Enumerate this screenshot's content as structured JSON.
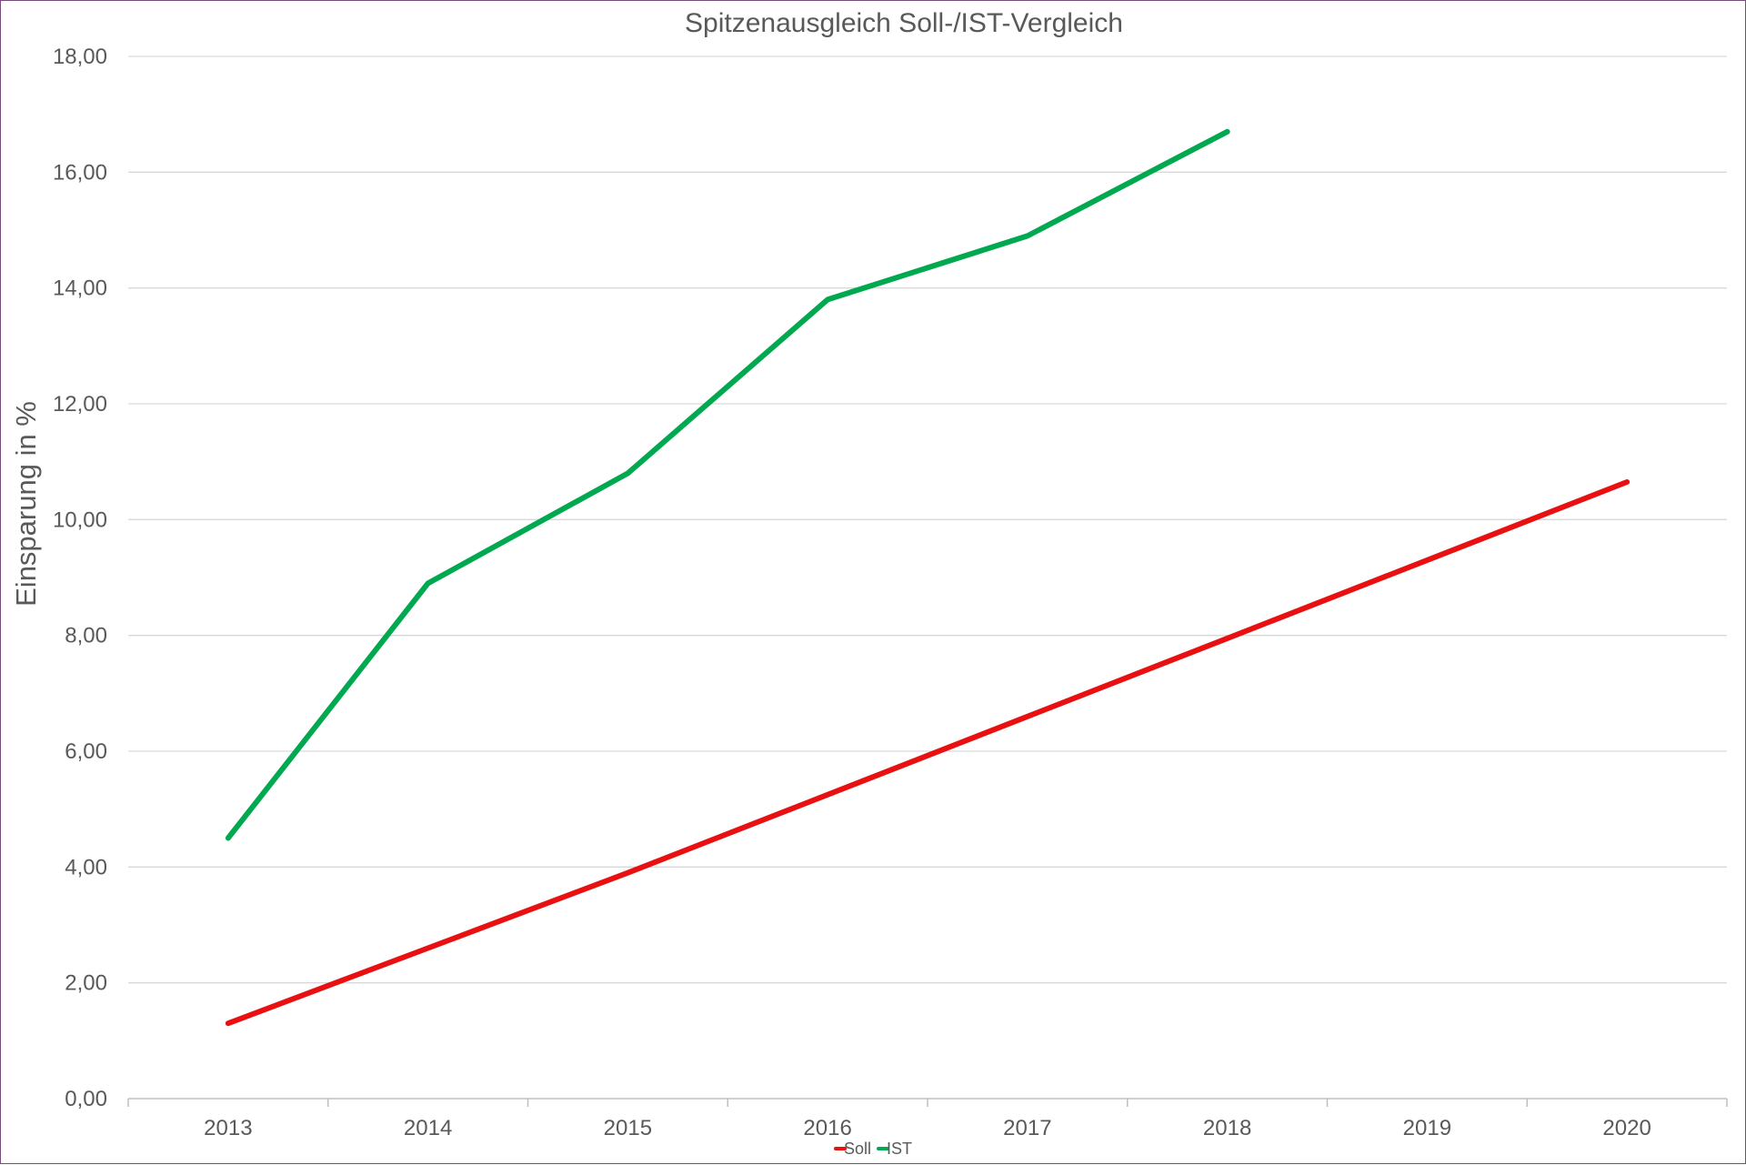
{
  "chart_data": {
    "type": "line",
    "title": "Spitzenausgleich  Soll-/IST-Vergleich",
    "xlabel": "",
    "ylabel": "Einsparung in %",
    "categories": [
      "2013",
      "2014",
      "2015",
      "2016",
      "2017",
      "2018",
      "2019",
      "2020"
    ],
    "ylim": [
      0,
      18
    ],
    "yticks": [
      "0,00",
      "2,00",
      "4,00",
      "6,00",
      "8,00",
      "10,00",
      "12,00",
      "14,00",
      "16,00",
      "18,00"
    ],
    "grid": true,
    "legend_position": "bottom",
    "series": [
      {
        "name": "Soll",
        "color": "#e81010",
        "values": [
          1.3,
          2.6,
          3.9,
          5.25,
          6.6,
          7.95,
          9.3,
          10.65
        ]
      },
      {
        "name": "IST",
        "color": "#00a84f",
        "values": [
          4.5,
          8.9,
          10.8,
          13.8,
          14.9,
          16.7,
          null,
          null
        ]
      }
    ]
  }
}
